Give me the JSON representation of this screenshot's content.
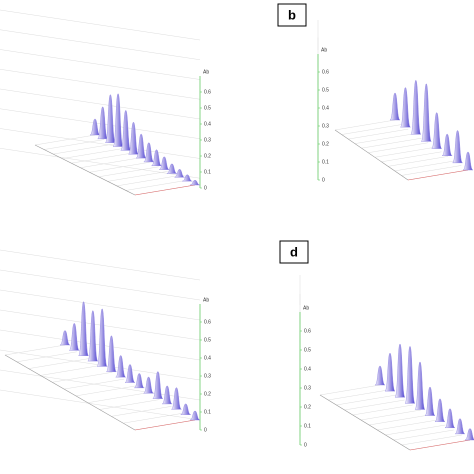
{
  "figure": {
    "panels": [
      {
        "z_title": "Ab",
        "zlim": [
          0,
          0.7
        ],
        "zticks": [
          0,
          0.1,
          0.2,
          0.3,
          0.4,
          0.5,
          0.6
        ],
        "peaks": [
          0.1,
          0.2,
          0.3,
          0.33,
          0.25,
          0.2,
          0.15,
          0.12,
          0.1,
          0.08,
          0.06,
          0.05,
          0.04,
          0.03
        ]
      },
      {
        "label": "b",
        "z_title": "Ab",
        "zlim": [
          0,
          0.7
        ],
        "zticks": [
          0,
          0.1,
          0.2,
          0.3,
          0.4,
          0.5,
          0.6
        ],
        "peaks": [
          0.15,
          0.22,
          0.3,
          0.32,
          0.2,
          0.12,
          0.18,
          0.1
        ]
      },
      {
        "z_title": "Ab",
        "zlim": [
          0,
          0.7
        ],
        "zticks": [
          0,
          0.1,
          0.2,
          0.3,
          0.4,
          0.5,
          0.6
        ],
        "peaks": [
          0.08,
          0.15,
          0.3,
          0.28,
          0.32,
          0.2,
          0.12,
          0.1,
          0.08,
          0.09,
          0.15,
          0.1,
          0.12,
          0.06,
          0.05
        ]
      },
      {
        "label": "d",
        "z_title": "Ab",
        "zlim": [
          0,
          0.7
        ],
        "zticks": [
          0,
          0.1,
          0.2,
          0.3,
          0.4,
          0.5,
          0.6
        ],
        "peaks": [
          0.1,
          0.2,
          0.28,
          0.3,
          0.25,
          0.15,
          0.12,
          0.1,
          0.08,
          0.06
        ]
      }
    ]
  }
}
